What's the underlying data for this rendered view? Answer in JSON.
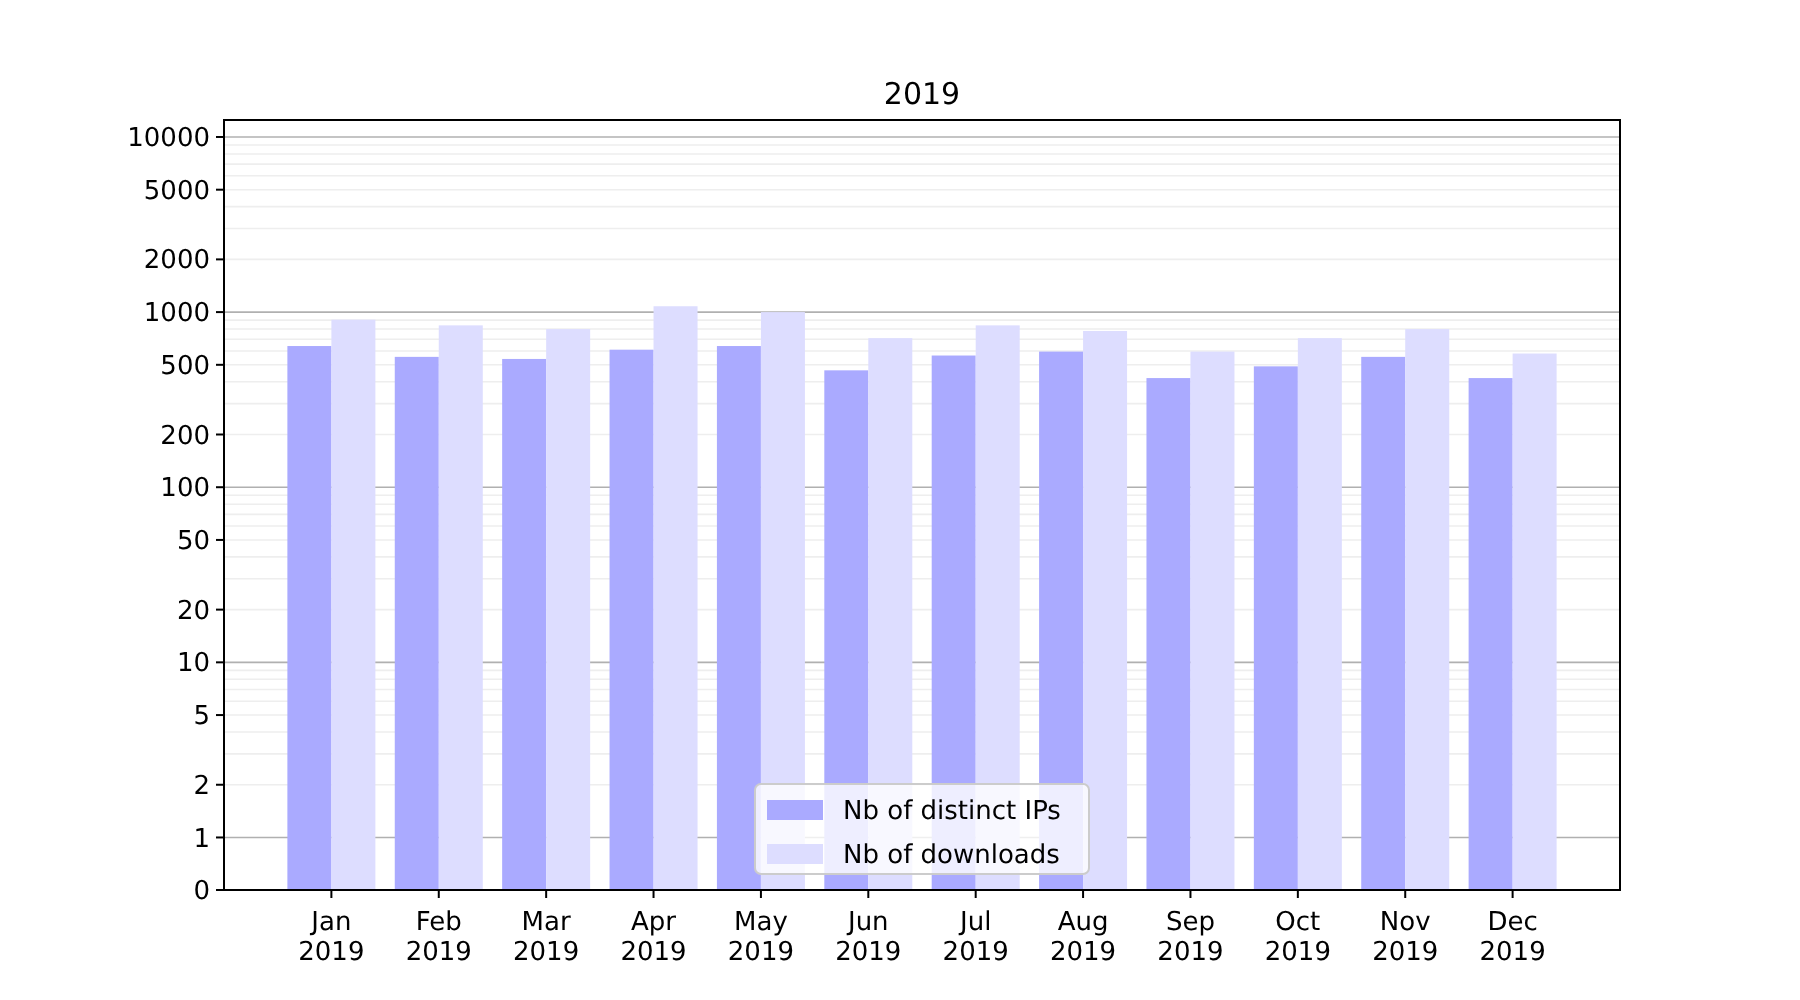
{
  "chart_data": {
    "type": "bar",
    "title": "2019",
    "categories": [
      "Jan\n2019",
      "Feb\n2019",
      "Mar\n2019",
      "Apr\n2019",
      "May\n2019",
      "Jun\n2019",
      "Jul\n2019",
      "Aug\n2019",
      "Sep\n2019",
      "Oct\n2019",
      "Nov\n2019",
      "Dec\n2019"
    ],
    "series": [
      {
        "name": "Nb of distinct IPs",
        "color": "#aaaaff",
        "values": [
          640,
          555,
          540,
          610,
          640,
          465,
          565,
          595,
          420,
          490,
          555,
          420
        ]
      },
      {
        "name": "Nb of downloads",
        "color": "#ddddff",
        "values": [
          905,
          840,
          800,
          1080,
          1000,
          710,
          840,
          780,
          595,
          710,
          800,
          580
        ]
      }
    ],
    "log": true,
    "ylim": [
      0,
      12500
    ],
    "yticks": [
      0,
      1,
      2,
      5,
      10,
      20,
      50,
      100,
      200,
      500,
      1000,
      2000,
      5000,
      10000
    ],
    "grid": "y",
    "legend": "bottom"
  }
}
